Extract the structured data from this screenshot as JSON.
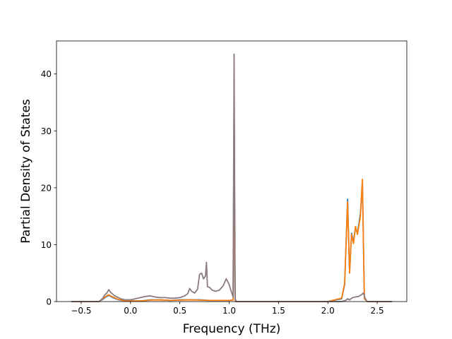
{
  "chart_data": {
    "type": "line",
    "title": "",
    "xlabel": "Frequency (THz)",
    "ylabel": "Partial Density of States",
    "xlim": [
      -0.75,
      2.8
    ],
    "ylim": [
      0,
      45.8
    ],
    "xticks": [
      -0.5,
      0.0,
      0.5,
      1.0,
      1.5,
      2.0,
      2.5
    ],
    "xtick_labels": [
      "−0.5",
      "0.0",
      "0.5",
      "1.0",
      "1.5",
      "2.0",
      "2.5"
    ],
    "yticks": [
      0,
      10,
      20,
      30,
      40
    ],
    "ytick_labels": [
      "0",
      "10",
      "20",
      "30",
      "40"
    ],
    "grid": false,
    "legend": "none",
    "series": [
      {
        "color": "#1f77b4",
        "x": [
          -0.6,
          -0.32,
          -0.28,
          -0.25,
          -0.22,
          -0.18,
          -0.12,
          -0.05,
          0.0,
          0.1,
          0.2,
          0.3,
          0.4,
          0.5,
          0.6,
          0.7,
          0.8,
          0.9,
          1.0,
          1.04,
          1.05,
          1.06,
          1.07,
          1.1,
          1.5,
          2.0,
          2.14,
          2.17,
          2.2,
          2.22,
          2.24,
          2.26,
          2.28,
          2.3,
          2.33,
          2.35,
          2.37,
          2.4,
          2.65
        ],
        "y": [
          0,
          0,
          0.4,
          0.8,
          1.1,
          0.7,
          0.3,
          0.1,
          0.1,
          0.1,
          0.3,
          0.3,
          0.2,
          0.3,
          0.3,
          0.3,
          0.2,
          0.2,
          0.2,
          0.3,
          35.0,
          0.2,
          0,
          0,
          0,
          0,
          0.5,
          3.0,
          18.0,
          5.0,
          12.0,
          10.5,
          13.0,
          12.0,
          15.5,
          21.0,
          0.5,
          0,
          0
        ]
      },
      {
        "color": "#ff7f0e",
        "x": [
          -0.6,
          -0.32,
          -0.28,
          -0.25,
          -0.22,
          -0.18,
          -0.12,
          -0.05,
          0.0,
          0.1,
          0.2,
          0.3,
          0.4,
          0.5,
          0.6,
          0.7,
          0.8,
          0.9,
          1.0,
          1.04,
          1.05,
          1.06,
          1.07,
          1.1,
          1.5,
          2.0,
          2.14,
          2.17,
          2.2,
          2.22,
          2.24,
          2.26,
          2.28,
          2.3,
          2.33,
          2.35,
          2.37,
          2.4,
          2.65
        ],
        "y": [
          0,
          0,
          0.5,
          0.9,
          1.2,
          0.8,
          0.35,
          0.1,
          0.1,
          0.1,
          0.25,
          0.3,
          0.2,
          0.25,
          0.3,
          0.25,
          0.2,
          0.2,
          0.2,
          0.3,
          30.0,
          0.2,
          0,
          0,
          0,
          0,
          0.6,
          3.2,
          17.5,
          5.0,
          11.8,
          10.2,
          13.2,
          11.8,
          15.0,
          21.5,
          0.5,
          0,
          0
        ]
      },
      {
        "color": "#8c7a82",
        "x": [
          -0.6,
          -0.32,
          -0.28,
          -0.26,
          -0.24,
          -0.22,
          -0.2,
          -0.16,
          -0.1,
          -0.05,
          0.0,
          0.05,
          0.1,
          0.15,
          0.2,
          0.25,
          0.3,
          0.35,
          0.4,
          0.45,
          0.5,
          0.55,
          0.58,
          0.6,
          0.62,
          0.65,
          0.68,
          0.7,
          0.72,
          0.74,
          0.76,
          0.77,
          0.78,
          0.8,
          0.83,
          0.86,
          0.9,
          0.94,
          0.97,
          1.0,
          1.02,
          1.04,
          1.05,
          1.06,
          1.07,
          1.1,
          1.5,
          2.0,
          2.14,
          2.18,
          2.2,
          2.22,
          2.25,
          2.28,
          2.31,
          2.34,
          2.36,
          2.38,
          2.4,
          2.65
        ],
        "y": [
          0,
          0,
          0.6,
          1.2,
          1.5,
          2.1,
          1.6,
          1.0,
          0.5,
          0.3,
          0.3,
          0.5,
          0.7,
          0.9,
          1.0,
          0.8,
          0.7,
          0.7,
          0.6,
          0.6,
          0.7,
          1.0,
          1.4,
          2.3,
          1.8,
          1.5,
          2.2,
          4.8,
          5.0,
          4.0,
          4.5,
          6.9,
          2.6,
          2.5,
          2.0,
          1.8,
          2.0,
          2.8,
          4.0,
          3.0,
          1.8,
          0.8,
          43.5,
          0.5,
          0,
          0,
          0,
          0,
          0,
          0.2,
          0.5,
          0.3,
          0.7,
          0.8,
          0.9,
          1.2,
          1.5,
          0.5,
          0,
          0
        ]
      }
    ]
  }
}
